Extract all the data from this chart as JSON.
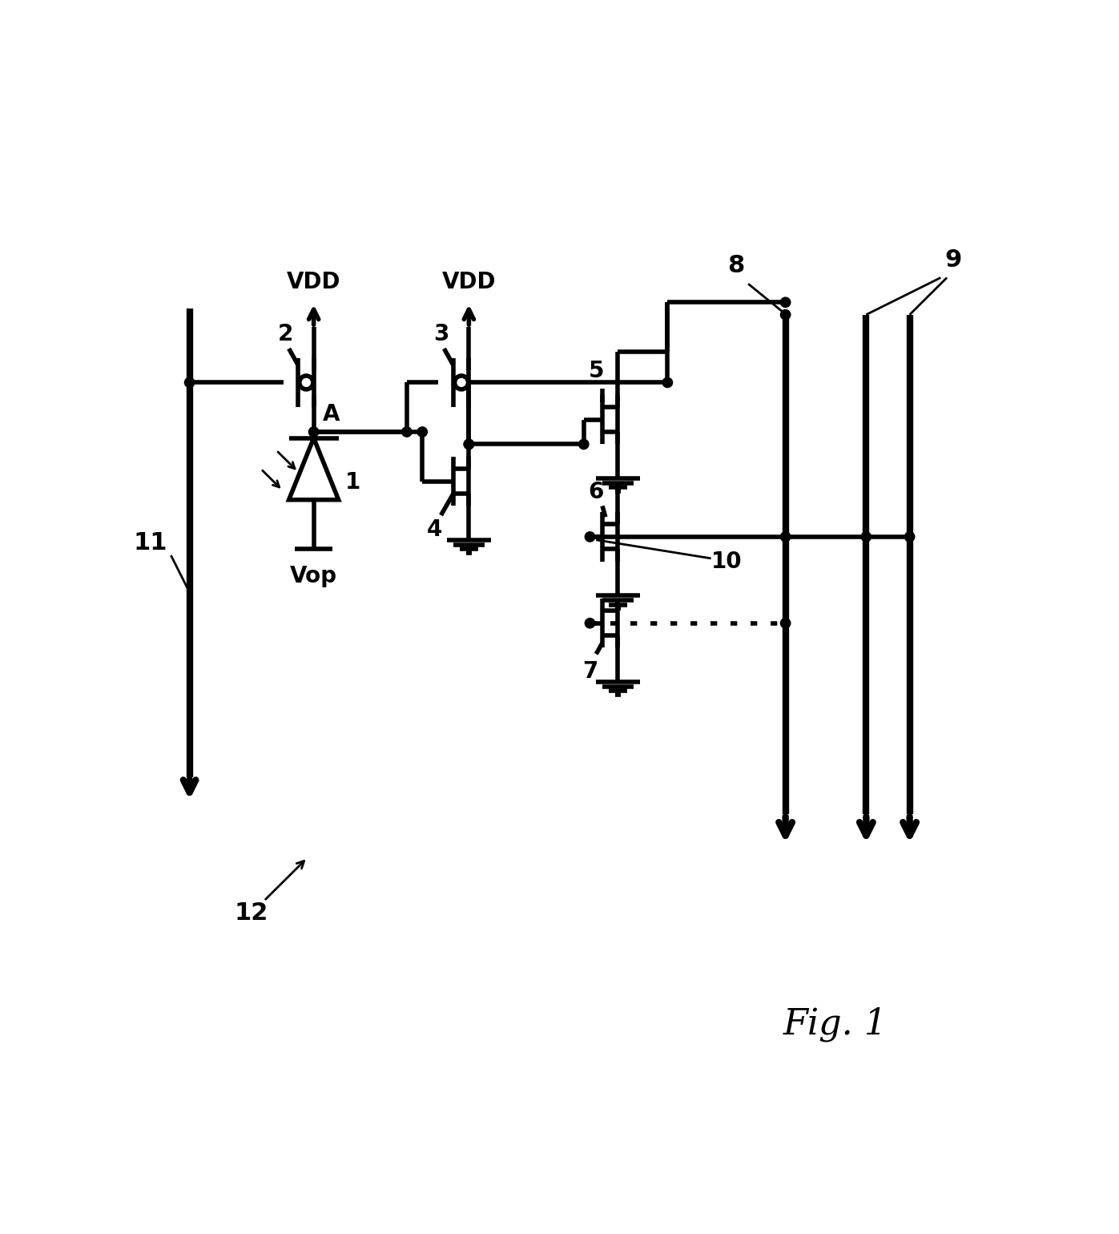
{
  "background_color": "#ffffff",
  "line_color": "#000000",
  "lw": 4.0,
  "lw_bus": 6.0,
  "lw_thin": 2.0,
  "fig_width": 13.97,
  "fig_height": 15.4,
  "xlim": [
    0,
    139.7
  ],
  "ylim": [
    0,
    154.0
  ]
}
